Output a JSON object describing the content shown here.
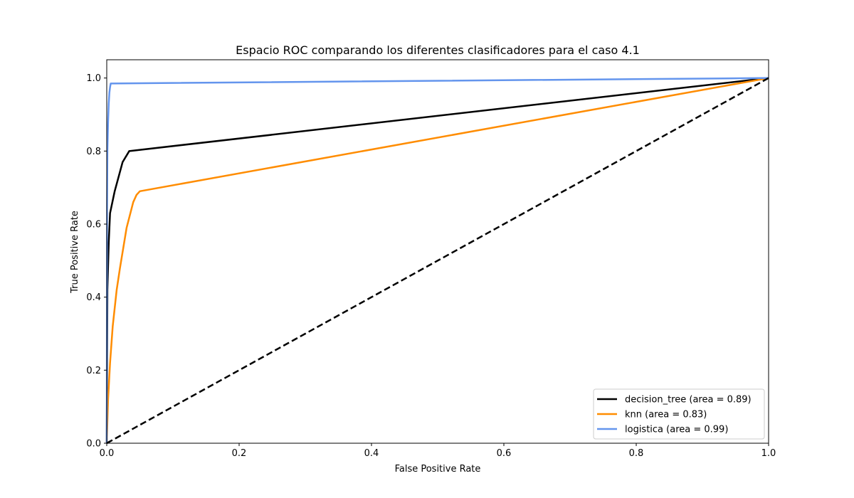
{
  "chart_data": {
    "type": "line",
    "title": "Espacio ROC comparando los diferentes clasificadores para el caso 4.1",
    "xlabel": "False Positive Rate",
    "ylabel": "True Positive Rate",
    "xlim": [
      0.0,
      1.0
    ],
    "ylim": [
      0.0,
      1.05
    ],
    "xticks": [
      "0.0",
      "0.2",
      "0.4",
      "0.6",
      "0.8",
      "1.0"
    ],
    "yticks": [
      "0.0",
      "0.2",
      "0.4",
      "0.6",
      "0.8",
      "1.0"
    ],
    "grid": false,
    "legend_position": "lower-right",
    "series": [
      {
        "name": "decision_tree (area = 0.89)",
        "color": "#000000",
        "x": [
          0.0,
          0.001,
          0.003,
          0.005,
          0.012,
          0.024,
          0.034,
          1.0
        ],
        "y": [
          0.0,
          0.42,
          0.55,
          0.63,
          0.69,
          0.77,
          0.8,
          1.0
        ]
      },
      {
        "name": "knn (area = 0.83)",
        "color": "#ff8c00",
        "x": [
          0.0,
          0.002,
          0.005,
          0.009,
          0.015,
          0.02,
          0.03,
          0.04,
          0.045,
          0.05,
          1.0
        ],
        "y": [
          0.0,
          0.12,
          0.22,
          0.32,
          0.42,
          0.48,
          0.59,
          0.66,
          0.68,
          0.69,
          1.0
        ]
      },
      {
        "name": "logistica (area = 0.99)",
        "color": "#6495ed",
        "x": [
          0.0,
          0.0005,
          0.001,
          0.002,
          0.003,
          0.004,
          0.005,
          0.006,
          1.0
        ],
        "y": [
          0.0,
          0.65,
          0.8,
          0.88,
          0.93,
          0.96,
          0.975,
          0.985,
          1.0
        ]
      },
      {
        "name": "",
        "color": "#000000",
        "dashed": true,
        "x": [
          0.0,
          1.0
        ],
        "y": [
          0.0,
          1.0
        ]
      }
    ]
  }
}
